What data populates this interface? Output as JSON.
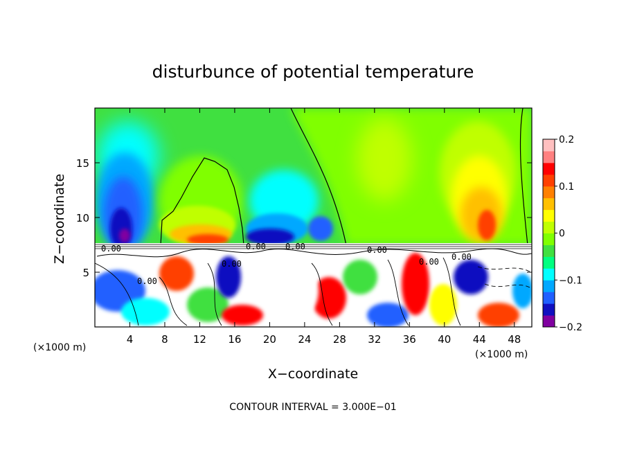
{
  "chart_data": {
    "type": "heatmap",
    "title": "disturbunce of potential temperature",
    "xlabel": "X−coordinate",
    "ylabel": "Z−coordinate",
    "x_unit": "(×1000 m)",
    "z_unit": "(×1000 m)",
    "xlim": [
      0,
      50
    ],
    "ylim": [
      0,
      20
    ],
    "x_ticks": [
      4,
      8,
      12,
      16,
      20,
      24,
      28,
      32,
      36,
      40,
      44,
      48
    ],
    "x_tick_labels": [
      "4",
      "8",
      "12",
      "16",
      "20",
      "24",
      "28",
      "32",
      "36",
      "40",
      "44",
      "48"
    ],
    "y_ticks": [
      5,
      10,
      15
    ],
    "y_tick_labels": [
      "5",
      "10",
      "15"
    ],
    "colorbar": {
      "min": -0.2,
      "max": 0.2,
      "ticks": [
        0.2,
        0.1,
        0,
        -0.1,
        -0.2
      ],
      "tick_labels": [
        "0.2",
        "0.1",
        "0",
        "−0.1",
        "−0.2"
      ],
      "colors": [
        "#8000a0",
        "#1010c0",
        "#2060ff",
        "#00a8ff",
        "#00ffff",
        "#00ff80",
        "#40e040",
        "#80ff00",
        "#c0ff00",
        "#ffff00",
        "#ffc000",
        "#ff8000",
        "#ff4000",
        "#ff0000",
        "#ff8080",
        "#ffc0c0"
      ]
    },
    "contour_labels": [
      "0.00",
      "0.00",
      "0.00",
      "0.00",
      "0.00",
      "0.00",
      "0.00",
      "0.00"
    ],
    "contour_interval_text": "CONTOUR INTERVAL = 3.000E−01",
    "features": [
      {
        "kind": "negative",
        "x": 4,
        "z": 12,
        "value": -0.15
      },
      {
        "kind": "negative",
        "x": 4.5,
        "z": 17,
        "value": -0.08
      },
      {
        "kind": "negative",
        "x": 20.5,
        "z": 10,
        "value": -0.14
      },
      {
        "kind": "negative",
        "x": 26,
        "z": 9,
        "value": -0.13
      },
      {
        "kind": "positive",
        "x": 14,
        "z": 11,
        "value": 0.05
      },
      {
        "kind": "positive",
        "x": 12,
        "z": 8.5,
        "value": 0.14
      },
      {
        "kind": "positive",
        "x": 44,
        "z": 12,
        "value": 0.11
      },
      {
        "kind": "positive",
        "x": 44.5,
        "z": 9,
        "value": 0.15
      },
      {
        "kind": "positive",
        "x": 32,
        "z": 16,
        "value": 0.04
      }
    ]
  }
}
